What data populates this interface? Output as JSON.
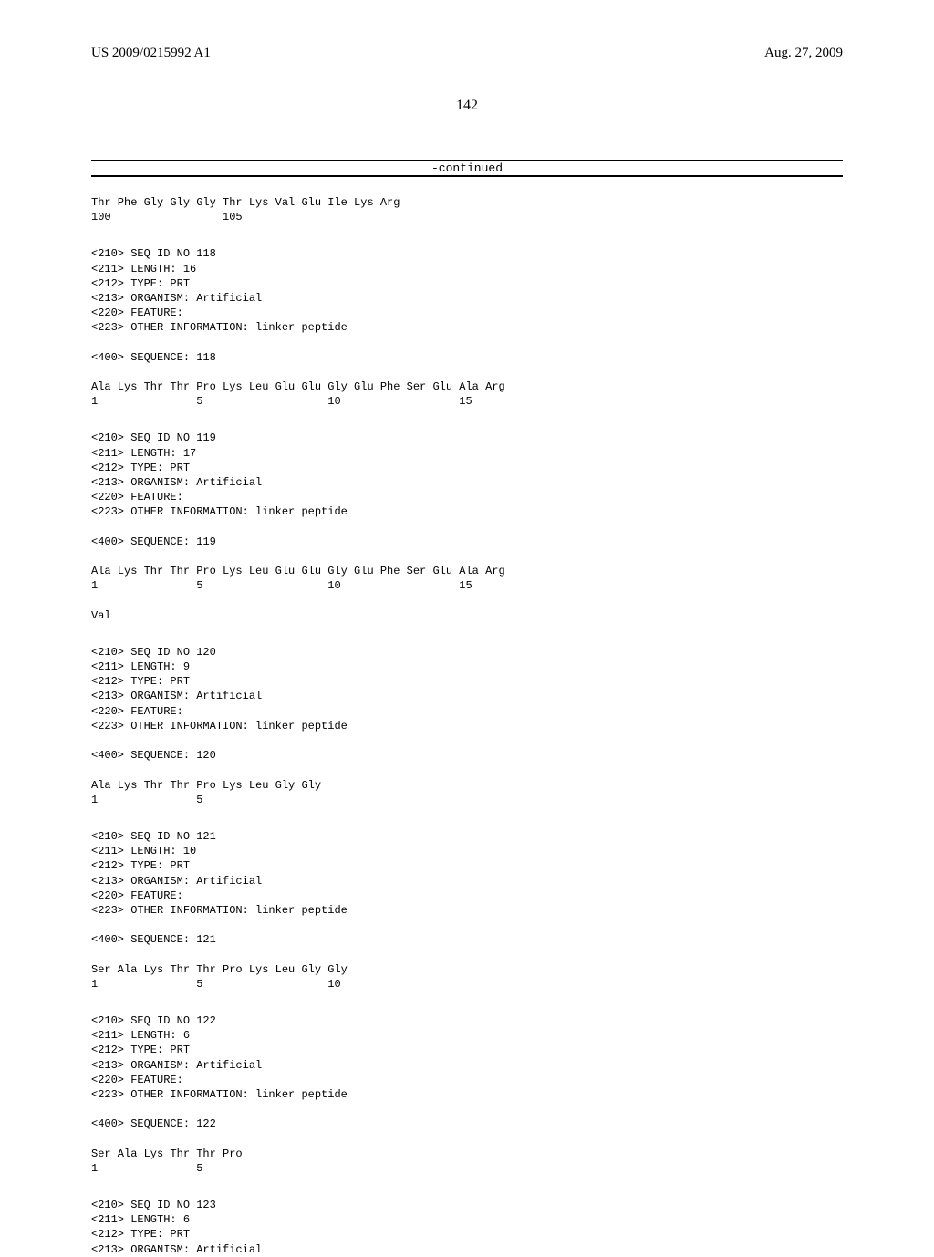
{
  "header": {
    "pub_no": "US 2009/0215992 A1",
    "pub_date": "Aug. 27, 2009"
  },
  "page_number": "142",
  "continued_label": "-continued",
  "blocks": [
    {
      "lines": [
        "Thr Phe Gly Gly Gly Thr Lys Val Glu Ile Lys Arg",
        "100                 105"
      ]
    },
    {
      "lines": [
        "<210> SEQ ID NO 118",
        "<211> LENGTH: 16",
        "<212> TYPE: PRT",
        "<213> ORGANISM: Artificial",
        "<220> FEATURE:",
        "<223> OTHER INFORMATION: linker peptide",
        "",
        "<400> SEQUENCE: 118",
        "",
        "Ala Lys Thr Thr Pro Lys Leu Glu Glu Gly Glu Phe Ser Glu Ala Arg",
        "1               5                   10                  15"
      ]
    },
    {
      "lines": [
        "<210> SEQ ID NO 119",
        "<211> LENGTH: 17",
        "<212> TYPE: PRT",
        "<213> ORGANISM: Artificial",
        "<220> FEATURE:",
        "<223> OTHER INFORMATION: linker peptide",
        "",
        "<400> SEQUENCE: 119",
        "",
        "Ala Lys Thr Thr Pro Lys Leu Glu Glu Gly Glu Phe Ser Glu Ala Arg",
        "1               5                   10                  15",
        "",
        "Val"
      ]
    },
    {
      "lines": [
        "<210> SEQ ID NO 120",
        "<211> LENGTH: 9",
        "<212> TYPE: PRT",
        "<213> ORGANISM: Artificial",
        "<220> FEATURE:",
        "<223> OTHER INFORMATION: linker peptide",
        "",
        "<400> SEQUENCE: 120",
        "",
        "Ala Lys Thr Thr Pro Lys Leu Gly Gly",
        "1               5"
      ]
    },
    {
      "lines": [
        "<210> SEQ ID NO 121",
        "<211> LENGTH: 10",
        "<212> TYPE: PRT",
        "<213> ORGANISM: Artificial",
        "<220> FEATURE:",
        "<223> OTHER INFORMATION: linker peptide",
        "",
        "<400> SEQUENCE: 121",
        "",
        "Ser Ala Lys Thr Thr Pro Lys Leu Gly Gly",
        "1               5                   10"
      ]
    },
    {
      "lines": [
        "<210> SEQ ID NO 122",
        "<211> LENGTH: 6",
        "<212> TYPE: PRT",
        "<213> ORGANISM: Artificial",
        "<220> FEATURE:",
        "<223> OTHER INFORMATION: linker peptide",
        "",
        "<400> SEQUENCE: 122",
        "",
        "Ser Ala Lys Thr Thr Pro",
        "1               5"
      ]
    },
    {
      "lines": [
        "<210> SEQ ID NO 123",
        "<211> LENGTH: 6",
        "<212> TYPE: PRT",
        "<213> ORGANISM: Artificial"
      ]
    }
  ]
}
